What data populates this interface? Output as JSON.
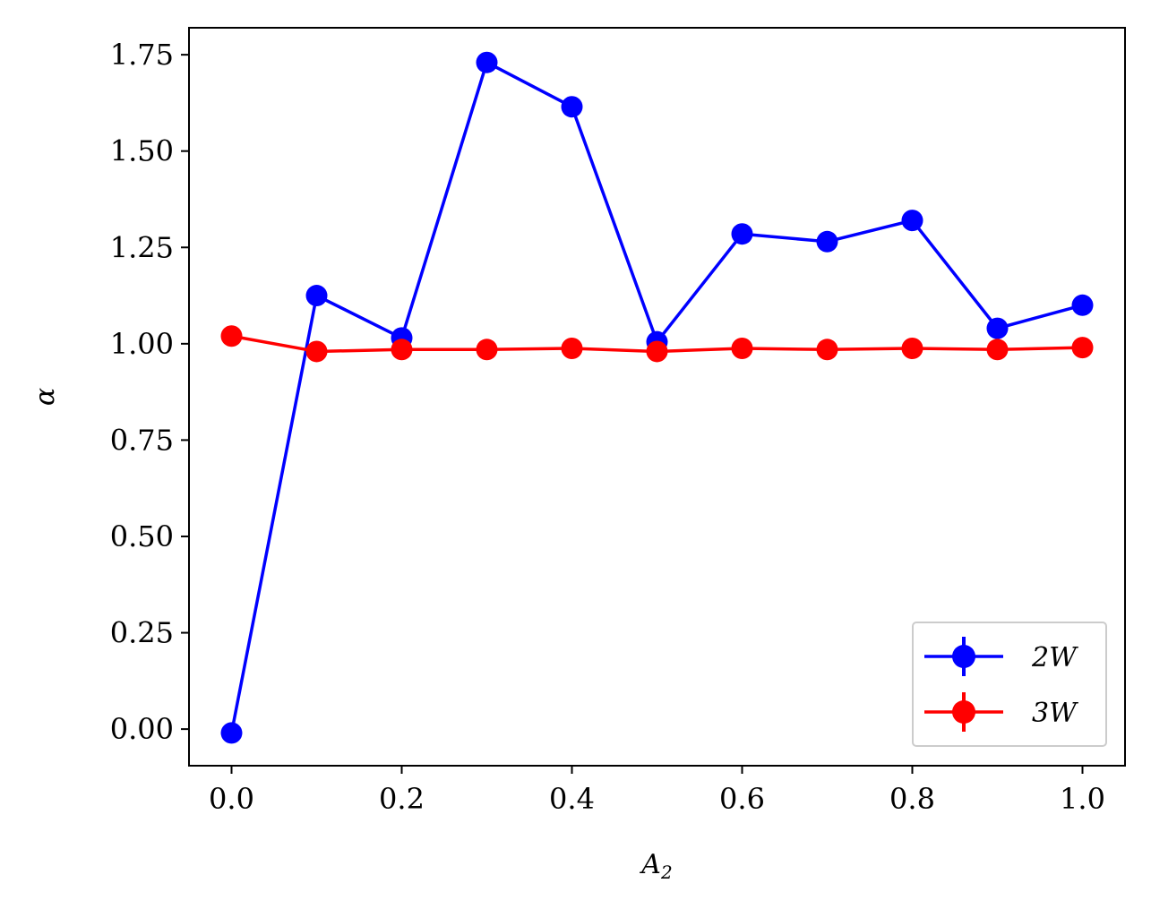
{
  "chart_data": {
    "type": "line",
    "xlabel": "A",
    "xlabel_sub": "2",
    "ylabel": "α",
    "xlim": [
      -0.05,
      1.05
    ],
    "ylim": [
      -0.095,
      1.82
    ],
    "xticks": [
      "0.0",
      "0.2",
      "0.4",
      "0.6",
      "0.8",
      "1.0"
    ],
    "yticks": [
      "0.00",
      "0.25",
      "0.50",
      "0.75",
      "1.00",
      "1.25",
      "1.50",
      "1.75"
    ],
    "grid": false,
    "legend_position": "lower-right",
    "x": [
      0.0,
      0.1,
      0.2,
      0.3,
      0.4,
      0.5,
      0.6,
      0.7,
      0.8,
      0.9,
      1.0
    ],
    "series": [
      {
        "name": "2W",
        "color": "#0000ff",
        "marker": "circle",
        "values": [
          -0.01,
          1.125,
          1.015,
          1.73,
          1.615,
          1.005,
          1.285,
          1.265,
          1.32,
          1.04,
          1.1
        ]
      },
      {
        "name": "3W",
        "color": "#ff0000",
        "marker": "circle",
        "values": [
          1.02,
          0.98,
          0.985,
          0.985,
          0.988,
          0.98,
          0.988,
          0.985,
          0.988,
          0.985,
          0.99
        ]
      }
    ]
  }
}
